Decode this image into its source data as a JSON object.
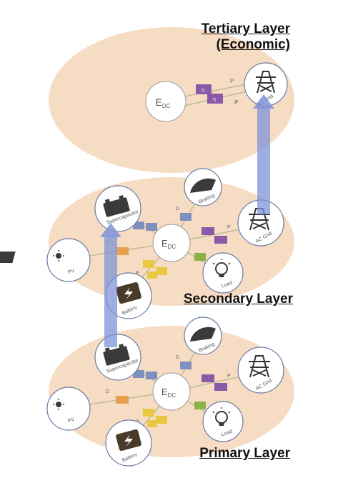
{
  "layers": {
    "tertiary": {
      "title_line1": "Tertiary Layer",
      "title_line2": "(Economic)",
      "center": "E",
      "center_sub": "DC",
      "grid_label": "AC Grid",
      "p_ac_top": "P",
      "p_ac_bottom": "P",
      "eta_top": "η",
      "eta_bottom": "η"
    },
    "secondary": {
      "title": "Secondary Layer",
      "center": "E",
      "center_sub": "DC",
      "nodes": {
        "supercapacitor": "Supercapacitor",
        "braking": "Braking",
        "ac_grid": "AC Grid",
        "pv": "PV",
        "load": "Load",
        "battery": "Battery"
      },
      "edges": {
        "braking_power": "D",
        "pv_power": "D",
        "p_sc": "P",
        "p_ac": "P",
        "p_b": "P",
        "p_l": "P"
      }
    },
    "primary": {
      "title": "Primary Layer",
      "center": "E",
      "center_sub": "DC",
      "nodes": {
        "supercapacitor": "Supercapacitor",
        "braking": "Braking",
        "ac_grid": "AC Grid",
        "pv": "PV",
        "load": "Load",
        "battery": "Battery"
      },
      "edges": {
        "braking_power": "D",
        "pv_power": "D",
        "p_sc": "P",
        "p_ac": "P",
        "p_b": "P",
        "p_l": "P"
      }
    }
  },
  "colors": {
    "layer_fill": "#f6dcc3",
    "node_stroke": "#6a7aa6",
    "arrow": "#7f93d8",
    "converter_blue": "#7f8fc0",
    "converter_purple": "#8a5aa8",
    "converter_orange": "#e8a050",
    "converter_yellow": "#e8c840",
    "converter_green": "#8ab048"
  }
}
